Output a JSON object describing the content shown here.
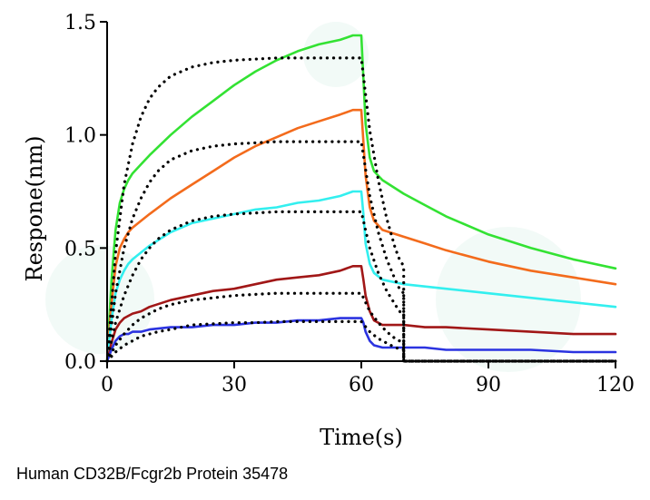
{
  "caption": "Human CD32B/Fcgr2b Protein 35478",
  "chart_data": {
    "type": "line",
    "title": "",
    "xlabel": "Time(s)",
    "ylabel": "Respone(nm)",
    "xlim": [
      0,
      120
    ],
    "ylim": [
      0,
      1.5
    ],
    "xticks": [
      0,
      30,
      60,
      90,
      120
    ],
    "xtick_labels": [
      "0",
      "30",
      "60",
      "90",
      "120"
    ],
    "yticks": [
      0,
      0.5,
      1.0,
      1.5
    ],
    "ytick_labels": [
      "0.0",
      "0.5",
      "1.0",
      "1.5"
    ],
    "grid": false,
    "series": [
      {
        "color": "#33e233",
        "style": "solid",
        "x": [
          0,
          1,
          2,
          3,
          4,
          5,
          6,
          8,
          10,
          15,
          20,
          25,
          30,
          35,
          40,
          45,
          50,
          55,
          58,
          60,
          60.5,
          61,
          62,
          63,
          65,
          70,
          75,
          80,
          90,
          100,
          110,
          120
        ],
        "y": [
          0,
          0.35,
          0.58,
          0.7,
          0.76,
          0.8,
          0.83,
          0.87,
          0.91,
          1.0,
          1.08,
          1.15,
          1.22,
          1.28,
          1.33,
          1.37,
          1.4,
          1.42,
          1.44,
          1.44,
          1.25,
          1.05,
          0.9,
          0.84,
          0.8,
          0.74,
          0.69,
          0.64,
          0.56,
          0.5,
          0.45,
          0.41
        ]
      },
      {
        "color": "#f36b1c",
        "style": "solid",
        "x": [
          0,
          1,
          2,
          3,
          4,
          5,
          6,
          8,
          10,
          15,
          20,
          25,
          30,
          35,
          40,
          45,
          50,
          55,
          58,
          60,
          60.5,
          61,
          62,
          63,
          65,
          70,
          75,
          80,
          90,
          100,
          110,
          120
        ],
        "y": [
          0,
          0.25,
          0.42,
          0.5,
          0.54,
          0.57,
          0.59,
          0.62,
          0.65,
          0.72,
          0.78,
          0.84,
          0.9,
          0.95,
          0.99,
          1.03,
          1.06,
          1.09,
          1.11,
          1.11,
          0.97,
          0.82,
          0.68,
          0.62,
          0.58,
          0.55,
          0.52,
          0.49,
          0.44,
          0.4,
          0.37,
          0.34
        ]
      },
      {
        "color": "#33efef",
        "style": "solid",
        "x": [
          0,
          1,
          2,
          3,
          4,
          5,
          6,
          8,
          10,
          15,
          20,
          25,
          30,
          35,
          40,
          45,
          50,
          55,
          58,
          60,
          60.5,
          61,
          62,
          63,
          65,
          70,
          75,
          80,
          90,
          100,
          110,
          120
        ],
        "y": [
          0,
          0.18,
          0.3,
          0.36,
          0.4,
          0.43,
          0.45,
          0.48,
          0.51,
          0.57,
          0.61,
          0.63,
          0.65,
          0.67,
          0.68,
          0.7,
          0.71,
          0.73,
          0.75,
          0.75,
          0.65,
          0.52,
          0.43,
          0.39,
          0.36,
          0.34,
          0.33,
          0.32,
          0.3,
          0.28,
          0.26,
          0.24
        ]
      },
      {
        "color": "#a11717",
        "style": "solid",
        "x": [
          0,
          1,
          2,
          3,
          4,
          5,
          6,
          8,
          10,
          15,
          20,
          25,
          30,
          35,
          40,
          45,
          50,
          55,
          58,
          60,
          60.5,
          61,
          62,
          63,
          65,
          70,
          75,
          80,
          90,
          100,
          110,
          120
        ],
        "y": [
          0,
          0.08,
          0.14,
          0.17,
          0.19,
          0.2,
          0.21,
          0.22,
          0.24,
          0.27,
          0.29,
          0.31,
          0.32,
          0.34,
          0.36,
          0.37,
          0.38,
          0.4,
          0.42,
          0.42,
          0.36,
          0.29,
          0.22,
          0.18,
          0.16,
          0.16,
          0.15,
          0.15,
          0.14,
          0.13,
          0.12,
          0.12
        ]
      },
      {
        "color": "#2b33e0",
        "style": "solid",
        "x": [
          0,
          1,
          2,
          3,
          4,
          5,
          6,
          8,
          10,
          15,
          20,
          25,
          30,
          35,
          40,
          45,
          50,
          55,
          58,
          60,
          60.5,
          61,
          62,
          63,
          65,
          70,
          75,
          80,
          90,
          100,
          110,
          120
        ],
        "y": [
          0,
          0.05,
          0.09,
          0.11,
          0.12,
          0.12,
          0.13,
          0.13,
          0.14,
          0.15,
          0.15,
          0.16,
          0.16,
          0.17,
          0.17,
          0.18,
          0.18,
          0.19,
          0.19,
          0.19,
          0.17,
          0.13,
          0.09,
          0.07,
          0.06,
          0.06,
          0.06,
          0.05,
          0.05,
          0.05,
          0.04,
          0.04
        ]
      },
      {
        "color": "#000000",
        "style": "dotted",
        "x": [
          0,
          2,
          4,
          6,
          8,
          10,
          12,
          15,
          20,
          25,
          30,
          35,
          40,
          45,
          50,
          55,
          60,
          62,
          64,
          66,
          68,
          69,
          70,
          70.01,
          80,
          90,
          100,
          110,
          120
        ],
        "y": [
          0,
          0.48,
          0.78,
          0.96,
          1.08,
          1.16,
          1.21,
          1.26,
          1.3,
          1.32,
          1.33,
          1.335,
          1.34,
          1.34,
          1.34,
          1.34,
          1.34,
          1.02,
          0.8,
          0.63,
          0.5,
          0.45,
          0.42,
          0.0,
          0.0,
          0.0,
          0.0,
          0.0,
          0.0
        ]
      },
      {
        "color": "#000000",
        "style": "dotted",
        "x": [
          0,
          2,
          4,
          6,
          8,
          10,
          12,
          15,
          20,
          25,
          30,
          35,
          40,
          45,
          50,
          55,
          60,
          62,
          64,
          66,
          68,
          69,
          70,
          70.01,
          80,
          90,
          100,
          110,
          120
        ],
        "y": [
          0,
          0.3,
          0.5,
          0.63,
          0.72,
          0.79,
          0.84,
          0.89,
          0.93,
          0.95,
          0.96,
          0.965,
          0.97,
          0.97,
          0.97,
          0.97,
          0.97,
          0.73,
          0.57,
          0.45,
          0.36,
          0.32,
          0.3,
          0.0,
          0.0,
          0.0,
          0.0,
          0.0,
          0.0
        ]
      },
      {
        "color": "#000000",
        "style": "dotted",
        "x": [
          0,
          2,
          4,
          6,
          8,
          10,
          12,
          15,
          20,
          25,
          30,
          35,
          40,
          45,
          50,
          55,
          60,
          62,
          64,
          66,
          68,
          69,
          70,
          70.01,
          80,
          90,
          100,
          110,
          120
        ],
        "y": [
          0,
          0.17,
          0.29,
          0.38,
          0.45,
          0.5,
          0.54,
          0.58,
          0.62,
          0.64,
          0.65,
          0.655,
          0.66,
          0.66,
          0.66,
          0.66,
          0.66,
          0.5,
          0.39,
          0.31,
          0.25,
          0.22,
          0.21,
          0.0,
          0.0,
          0.0,
          0.0,
          0.0,
          0.0
        ]
      },
      {
        "color": "#000000",
        "style": "dotted",
        "x": [
          0,
          2,
          4,
          6,
          8,
          10,
          12,
          15,
          20,
          25,
          30,
          35,
          40,
          45,
          50,
          55,
          60,
          62,
          64,
          66,
          68,
          69,
          70,
          70.01,
          80,
          90,
          100,
          110,
          120
        ],
        "y": [
          0,
          0.07,
          0.12,
          0.16,
          0.19,
          0.21,
          0.23,
          0.25,
          0.27,
          0.28,
          0.29,
          0.295,
          0.3,
          0.3,
          0.3,
          0.3,
          0.3,
          0.22,
          0.17,
          0.13,
          0.1,
          0.09,
          0.08,
          0.0,
          0.0,
          0.0,
          0.0,
          0.0,
          0.0
        ]
      },
      {
        "color": "#000000",
        "style": "dotted",
        "x": [
          0,
          2,
          4,
          6,
          8,
          10,
          12,
          15,
          20,
          25,
          30,
          35,
          40,
          45,
          50,
          55,
          60,
          62,
          64,
          66,
          68,
          69,
          70,
          70.01,
          80,
          90,
          100,
          110,
          120
        ],
        "y": [
          0,
          0.04,
          0.07,
          0.09,
          0.11,
          0.12,
          0.13,
          0.14,
          0.16,
          0.165,
          0.17,
          0.17,
          0.175,
          0.175,
          0.175,
          0.175,
          0.175,
          0.13,
          0.1,
          0.08,
          0.06,
          0.055,
          0.05,
          0.0,
          0.0,
          0.0,
          0.0,
          0.0,
          0.0
        ]
      }
    ]
  }
}
